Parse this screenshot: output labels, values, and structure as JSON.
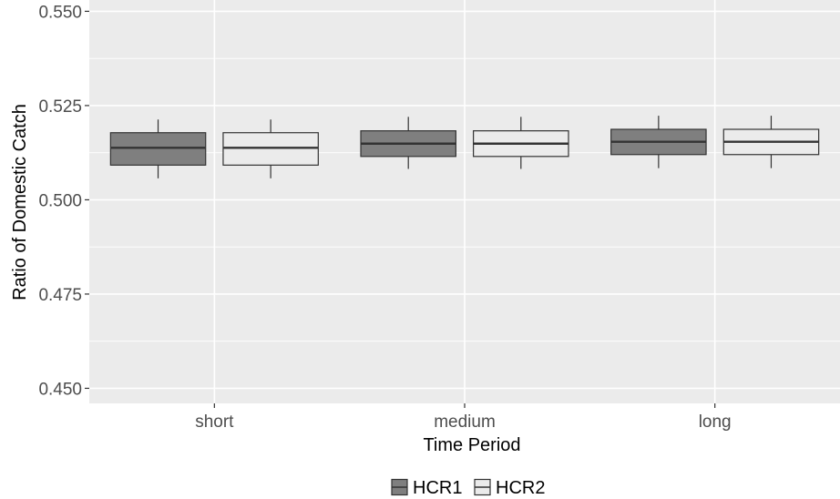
{
  "chart_data": {
    "type": "box",
    "title": "",
    "xlabel": "Time Period",
    "ylabel": "Ratio of Domestic Catch",
    "categories": [
      "short",
      "medium",
      "long"
    ],
    "ylim": [
      0.446,
      0.553
    ],
    "yticks": [
      0.45,
      0.475,
      0.5,
      0.525,
      0.55
    ],
    "ytick_labels": [
      "0.450",
      "0.475",
      "0.500",
      "0.525",
      "0.550"
    ],
    "grid": true,
    "legend_position": "bottom",
    "series": [
      {
        "name": "HCR1",
        "fill": "#7f7f7f",
        "boxes": [
          {
            "whisker_low": 0.5057,
            "q1": 0.5092,
            "median": 0.5138,
            "q3": 0.5178,
            "whisker_high": 0.5213
          },
          {
            "whisker_low": 0.5082,
            "q1": 0.5115,
            "median": 0.5149,
            "q3": 0.5183,
            "whisker_high": 0.522
          },
          {
            "whisker_low": 0.5084,
            "q1": 0.512,
            "median": 0.5154,
            "q3": 0.5187,
            "whisker_high": 0.5223
          }
        ]
      },
      {
        "name": "HCR2",
        "fill": "#ebebeb",
        "boxes": [
          {
            "whisker_low": 0.5057,
            "q1": 0.5092,
            "median": 0.5138,
            "q3": 0.5178,
            "whisker_high": 0.5213
          },
          {
            "whisker_low": 0.5082,
            "q1": 0.5115,
            "median": 0.5149,
            "q3": 0.5183,
            "whisker_high": 0.522
          },
          {
            "whisker_low": 0.5084,
            "q1": 0.512,
            "median": 0.5154,
            "q3": 0.5187,
            "whisker_high": 0.5223
          }
        ]
      }
    ]
  }
}
